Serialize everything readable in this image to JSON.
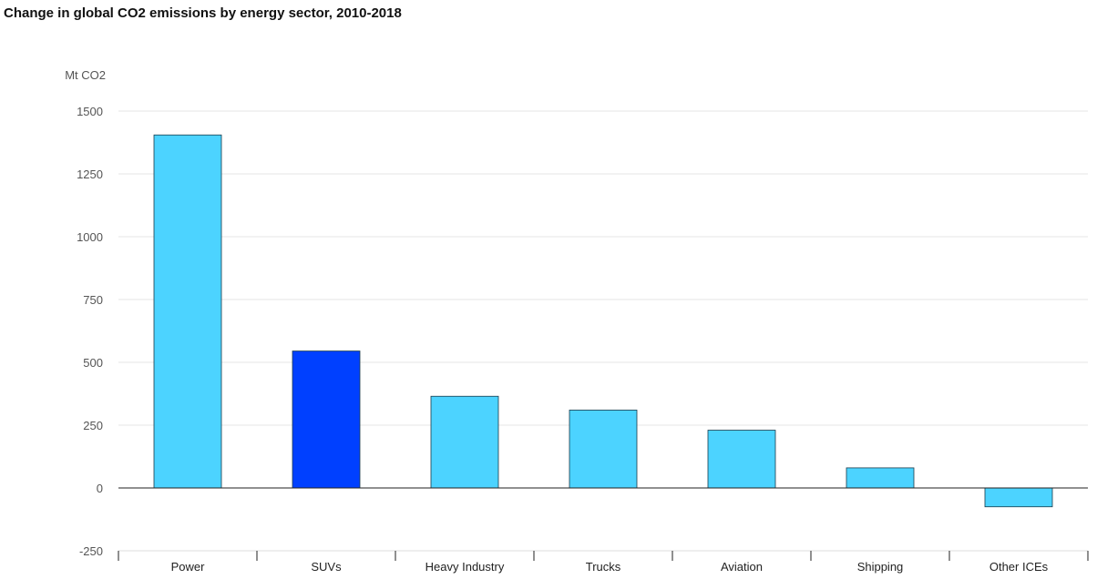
{
  "chart_data": {
    "type": "bar",
    "title": "Change in global CO2 emissions by energy sector, 2010-2018",
    "ylabel": "Mt CO2",
    "xlabel": "",
    "ylim": [
      -250,
      1500
    ],
    "yticks": [
      1500,
      1250,
      1000,
      750,
      500,
      250,
      0,
      -250
    ],
    "grid": true,
    "categories": [
      "Power",
      "SUVs",
      "Heavy Industry",
      "Trucks",
      "Aviation",
      "Shipping",
      "Other ICEs"
    ],
    "values": [
      1405,
      545,
      365,
      310,
      230,
      80,
      -75
    ],
    "colors": [
      "#4cd3ff",
      "#0040ff",
      "#4cd3ff",
      "#4cd3ff",
      "#4cd3ff",
      "#4cd3ff",
      "#4cd3ff"
    ],
    "grid_color": "#e6e6e6",
    "baseline_color": "#222222"
  }
}
